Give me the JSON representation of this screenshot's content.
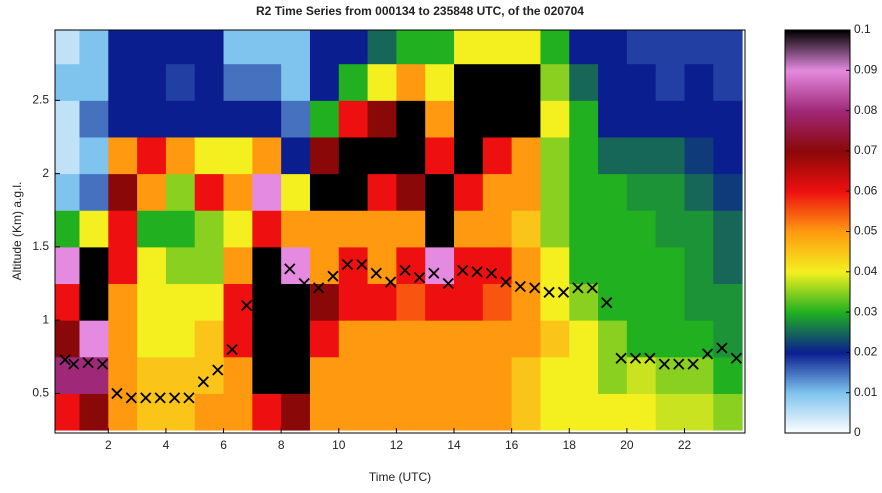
{
  "chart_data": {
    "type": "heatmap",
    "title": "R2 Time Series from 000134 to 235848 UTC, of the 020704",
    "x_label": "Time (UTC)",
    "y_label": "Altitude (Km) a.g.l.",
    "xlim": [
      0.15,
      24.1
    ],
    "ylim": [
      0.23,
      2.98
    ],
    "xticks": [
      2,
      4,
      6,
      8,
      10,
      12,
      14,
      16,
      18,
      20,
      22
    ],
    "yticks": [
      0.5,
      1,
      1.5,
      2,
      2.5
    ],
    "clim": [
      0,
      0.1
    ],
    "cticks": [
      0,
      0.01,
      0.02,
      0.03,
      0.04,
      0.05,
      0.06,
      0.07,
      0.08,
      0.09,
      0.1
    ],
    "colormap": [
      "#ffffff",
      "#7fc4ee",
      "#0b1e90",
      "#20b020",
      "#f4f020",
      "#ff9a10",
      "#ee1010",
      "#8a0808",
      "#a02878",
      "#e48ae0",
      "#000000"
    ],
    "xbins": [
      0,
      1,
      2,
      3,
      4,
      5,
      6,
      7,
      8,
      9,
      10,
      11,
      12,
      13,
      14,
      15,
      16,
      17,
      18,
      19,
      20,
      21,
      22,
      23,
      24
    ],
    "ybins": [
      0.25,
      0.5,
      0.75,
      1,
      1.25,
      1.5,
      1.75,
      2,
      2.25,
      2.5,
      2.75,
      3
    ],
    "z": [
      [
        0.06,
        0.08,
        0.07,
        0.06,
        0.09,
        0.03,
        0.01,
        0.005,
        0.005,
        0.01,
        0.005
      ],
      [
        0.07,
        0.08,
        0.09,
        0.1,
        0.1,
        0.04,
        0.015,
        0.01,
        0.015,
        0.01,
        0.01
      ],
      [
        0.05,
        0.05,
        0.05,
        0.05,
        0.06,
        0.06,
        0.07,
        0.05,
        0.02,
        0.02,
        0.02
      ],
      [
        0.045,
        0.045,
        0.04,
        0.04,
        0.04,
        0.03,
        0.05,
        0.06,
        0.02,
        0.02,
        0.02
      ],
      [
        0.045,
        0.045,
        0.04,
        0.04,
        0.035,
        0.03,
        0.035,
        0.05,
        0.02,
        0.018,
        0.02
      ],
      [
        0.05,
        0.045,
        0.045,
        0.04,
        0.035,
        0.035,
        0.06,
        0.04,
        0.02,
        0.02,
        0.02
      ],
      [
        0.05,
        0.05,
        0.06,
        0.06,
        0.05,
        0.04,
        0.05,
        0.04,
        0.02,
        0.015,
        0.01
      ],
      [
        0.06,
        0.1,
        0.1,
        0.1,
        0.1,
        0.06,
        0.09,
        0.05,
        0.02,
        0.015,
        0.01
      ],
      [
        0.07,
        0.1,
        0.1,
        0.1,
        0.09,
        0.05,
        0.04,
        0.02,
        0.015,
        0.01,
        0.01
      ],
      [
        0.05,
        0.05,
        0.06,
        0.07,
        0.05,
        0.05,
        0.1,
        0.07,
        0.03,
        0.02,
        0.02
      ],
      [
        0.05,
        0.05,
        0.05,
        0.06,
        0.06,
        0.05,
        0.1,
        0.1,
        0.06,
        0.03,
        0.02
      ],
      [
        0.05,
        0.05,
        0.05,
        0.06,
        0.05,
        0.05,
        0.06,
        0.1,
        0.07,
        0.04,
        0.025
      ],
      [
        0.05,
        0.05,
        0.05,
        0.055,
        0.06,
        0.05,
        0.07,
        0.1,
        0.1,
        0.05,
        0.03
      ],
      [
        0.05,
        0.05,
        0.05,
        0.06,
        0.09,
        0.1,
        0.1,
        0.06,
        0.05,
        0.04,
        0.03
      ],
      [
        0.05,
        0.05,
        0.05,
        0.06,
        0.06,
        0.05,
        0.06,
        0.1,
        0.1,
        0.1,
        0.04
      ],
      [
        0.05,
        0.05,
        0.05,
        0.055,
        0.06,
        0.05,
        0.05,
        0.06,
        0.1,
        0.1,
        0.04
      ],
      [
        0.045,
        0.045,
        0.05,
        0.05,
        0.05,
        0.045,
        0.05,
        0.05,
        0.1,
        0.1,
        0.04
      ],
      [
        0.04,
        0.04,
        0.045,
        0.04,
        0.04,
        0.035,
        0.035,
        0.035,
        0.04,
        0.035,
        0.03
      ],
      [
        0.04,
        0.04,
        0.04,
        0.035,
        0.03,
        0.03,
        0.03,
        0.03,
        0.03,
        0.025,
        0.02
      ],
      [
        0.04,
        0.035,
        0.035,
        0.03,
        0.03,
        0.03,
        0.03,
        0.025,
        0.02,
        0.02,
        0.02
      ],
      [
        0.04,
        0.038,
        0.03,
        0.03,
        0.03,
        0.03,
        0.028,
        0.025,
        0.02,
        0.02,
        0.018
      ],
      [
        0.038,
        0.035,
        0.03,
        0.03,
        0.03,
        0.028,
        0.028,
        0.025,
        0.02,
        0.018,
        0.018
      ],
      [
        0.038,
        0.035,
        0.03,
        0.028,
        0.028,
        0.028,
        0.025,
        0.022,
        0.02,
        0.02,
        0.018
      ],
      [
        0.035,
        0.03,
        0.028,
        0.028,
        0.025,
        0.025,
        0.022,
        0.02,
        0.02,
        0.018,
        0.018
      ]
    ],
    "markers": {
      "color": "#000000",
      "x": [
        0.5,
        0.8,
        1.3,
        1.8,
        2.3,
        2.8,
        3.3,
        3.8,
        4.3,
        4.8,
        5.3,
        5.8,
        6.3,
        6.8,
        7.3,
        7.8,
        8.3,
        8.8,
        9.3,
        9.8,
        10.3,
        10.8,
        11.3,
        11.8,
        12.3,
        12.8,
        13.3,
        13.8,
        14.3,
        14.8,
        15.3,
        15.8,
        16.3,
        16.8,
        17.3,
        17.8,
        18.3,
        18.8,
        19.3,
        19.8,
        20.3,
        20.8,
        21.3,
        21.8,
        22.3,
        22.8,
        23.3,
        23.8
      ],
      "y": [
        0.73,
        0.7,
        0.71,
        0.7,
        0.5,
        0.47,
        0.47,
        0.47,
        0.47,
        0.47,
        0.58,
        0.66,
        0.8,
        1.1,
        1.33,
        1.38,
        1.35,
        1.25,
        1.22,
        1.3,
        1.38,
        1.38,
        1.32,
        1.26,
        1.34,
        1.29,
        1.32,
        1.25,
        1.34,
        1.33,
        1.32,
        1.26,
        1.23,
        1.22,
        1.19,
        1.19,
        1.22,
        1.22,
        1.12,
        0.74,
        0.74,
        0.74,
        0.7,
        0.7,
        0.7,
        0.77,
        0.81,
        0.74
      ]
    }
  }
}
